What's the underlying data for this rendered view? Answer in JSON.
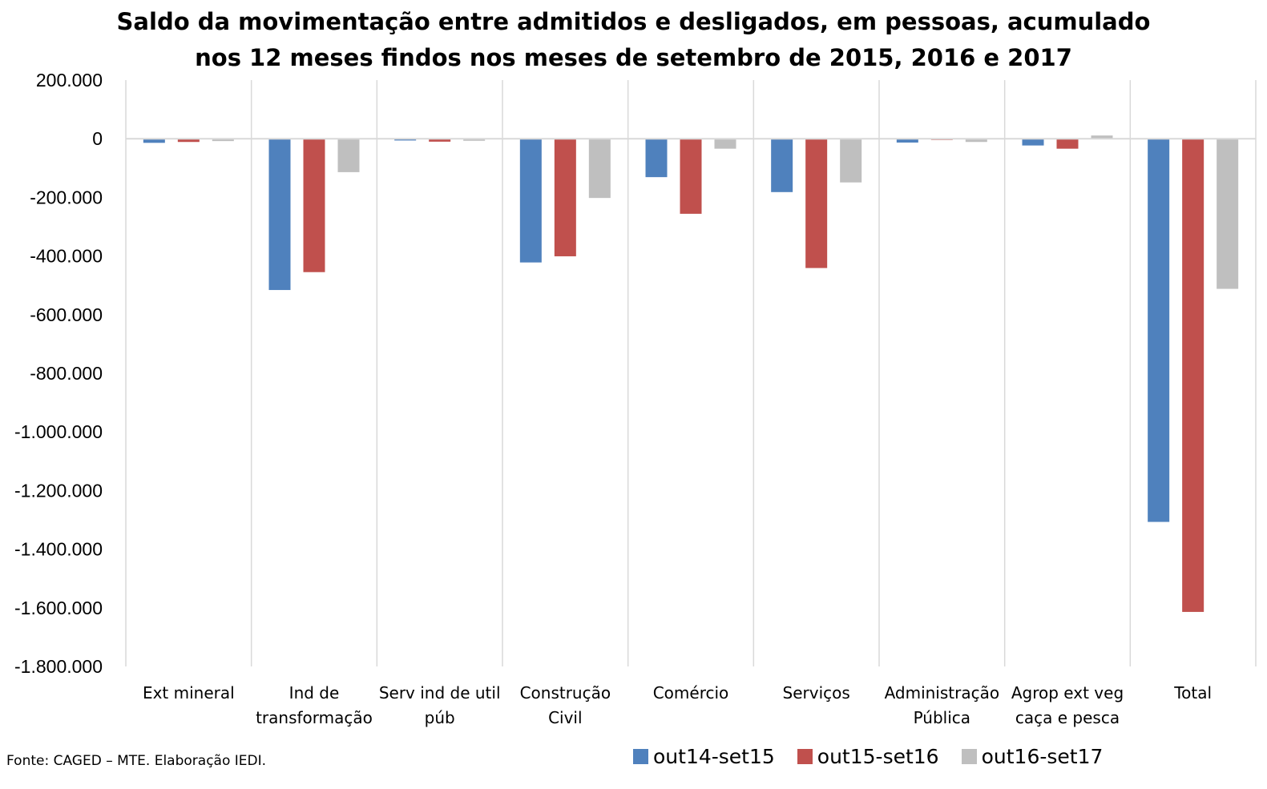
{
  "chart_data": {
    "type": "bar",
    "title_lines": [
      "Saldo da movimentação entre admitidos e desligados, em pessoas, acumulado",
      "nos 12 meses findos nos meses de setembro de 2015, 2016 e 2017"
    ],
    "categories": [
      [
        "Ext mineral"
      ],
      [
        "Ind de",
        "transformação"
      ],
      [
        "Serv ind de util",
        "púb"
      ],
      [
        "Construção",
        "Civil"
      ],
      [
        "Comércio"
      ],
      [
        "Serviços"
      ],
      [
        "Administração",
        "Pública"
      ],
      [
        "Agrop ext veg",
        "caça e pesca"
      ],
      [
        "Total"
      ]
    ],
    "series": [
      {
        "name": "out14-set15",
        "color": "#4F81BD",
        "values": [
          -14000,
          -516000,
          -6000,
          -422000,
          -131000,
          -182000,
          -13000,
          -23000,
          -1307000
        ]
      },
      {
        "name": "out15-set16",
        "color": "#C0504D",
        "values": [
          -11000,
          -455000,
          -10000,
          -401000,
          -256000,
          -441000,
          -4000,
          -34000,
          -1614000
        ]
      },
      {
        "name": "out16-set17",
        "color": "#BFBFBF",
        "values": [
          -8000,
          -114000,
          -7000,
          -202000,
          -34000,
          -149000,
          -11000,
          11000,
          -512000
        ]
      }
    ],
    "ylim": [
      -1800000,
      200000
    ],
    "yticks": [
      {
        "value": 200000,
        "label": "200.000"
      },
      {
        "value": 0,
        "label": "0"
      },
      {
        "value": -200000,
        "label": "-200.000"
      },
      {
        "value": -400000,
        "label": "-400.000"
      },
      {
        "value": -600000,
        "label": "-600.000"
      },
      {
        "value": -800000,
        "label": "-800.000"
      },
      {
        "value": -1000000,
        "label": "-1.000.000"
      },
      {
        "value": -1200000,
        "label": "-1.200.000"
      },
      {
        "value": -1400000,
        "label": "-1.400.000"
      },
      {
        "value": -1600000,
        "label": "-1.600.000"
      },
      {
        "value": -1800000,
        "label": "-1.800.000"
      }
    ],
    "grid": "vertical category separators",
    "legend_position": "bottom-right",
    "source": "Fonte: CAGED – MTE. Elaboração IEDI."
  }
}
